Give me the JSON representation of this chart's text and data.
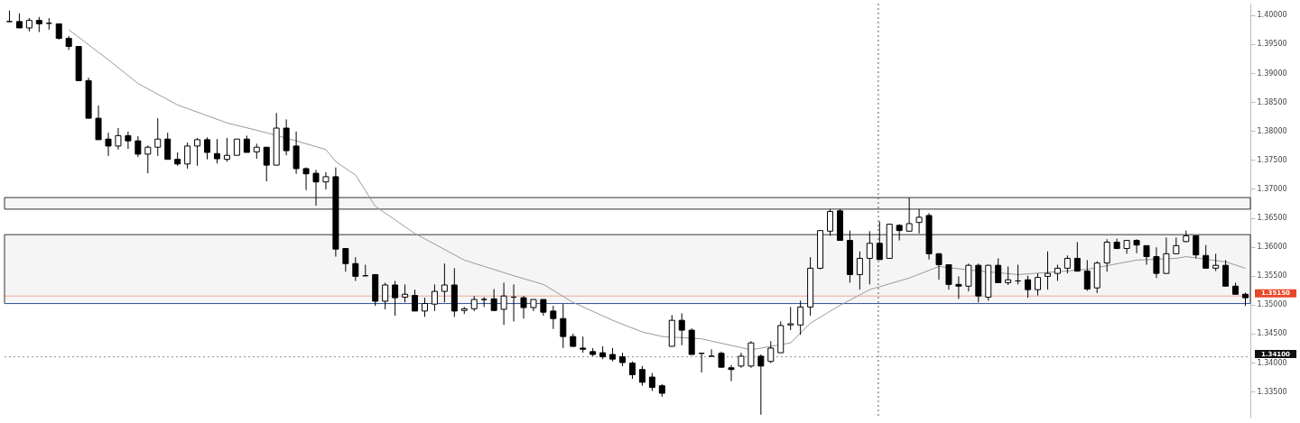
{
  "chart_data": {
    "type": "candlestick",
    "categories": [
      null,
      null,
      null,
      null,
      null,
      null,
      null,
      null,
      null,
      null,
      null,
      null,
      null,
      null,
      null,
      null,
      null,
      null,
      null,
      null,
      null,
      null,
      null,
      null,
      null,
      null,
      null,
      null,
      null,
      null,
      null,
      null,
      null,
      null,
      null,
      null,
      null,
      null,
      null,
      null,
      null,
      null,
      null,
      null,
      null,
      null,
      null,
      null,
      null,
      null,
      null,
      null,
      null,
      null,
      null,
      null,
      null,
      null,
      null,
      null,
      null,
      null,
      null,
      null,
      null,
      null,
      null,
      null,
      null,
      null,
      null,
      null,
      null,
      null,
      null,
      null,
      null,
      null,
      null,
      null,
      null,
      null,
      null,
      null,
      null,
      null,
      null,
      null,
      null,
      null,
      null,
      null,
      null,
      null,
      null,
      null,
      null,
      null,
      null,
      null,
      null,
      null,
      null,
      null,
      null,
      null,
      null,
      null,
      null,
      null,
      null,
      null,
      null,
      null,
      null,
      null,
      null,
      null,
      null,
      null,
      null,
      null,
      null,
      null,
      null,
      null
    ],
    "ohlc": [
      [
        1.3989,
        1.4008,
        1.3988,
        1.3989
      ],
      [
        1.3989,
        1.4003,
        1.3978,
        1.3978
      ],
      [
        1.3978,
        1.3995,
        1.3972,
        1.3991
      ],
      [
        1.3991,
        1.3997,
        1.3971,
        1.3985
      ],
      [
        1.3986,
        1.3995,
        1.3975,
        1.3986
      ],
      [
        1.3985,
        1.3985,
        1.3958,
        1.396
      ],
      [
        1.396,
        1.3964,
        1.394,
        1.3946
      ],
      [
        1.3946,
        1.3946,
        1.3887,
        1.3887
      ],
      [
        1.3887,
        1.3892,
        1.3822,
        1.3822
      ],
      [
        1.3822,
        1.3844,
        1.3785,
        1.3785
      ],
      [
        1.3786,
        1.3797,
        1.3757,
        1.3774
      ],
      [
        1.3774,
        1.3805,
        1.3768,
        1.3792
      ],
      [
        1.3792,
        1.3799,
        1.3769,
        1.3783
      ],
      [
        1.3783,
        1.3791,
        1.3755,
        1.376
      ],
      [
        1.376,
        1.3775,
        1.3727,
        1.3772
      ],
      [
        1.3772,
        1.3822,
        1.3757,
        1.3786
      ],
      [
        1.3786,
        1.3797,
        1.3751,
        1.3751
      ],
      [
        1.3751,
        1.3763,
        1.374,
        1.3743
      ],
      [
        1.3743,
        1.378,
        1.3735,
        1.3774
      ],
      [
        1.3774,
        1.3788,
        1.374,
        1.3785
      ],
      [
        1.3785,
        1.3789,
        1.3751,
        1.3763
      ],
      [
        1.3761,
        1.3786,
        1.3744,
        1.3752
      ],
      [
        1.3751,
        1.3788,
        1.3747,
        1.3758
      ],
      [
        1.3758,
        1.3786,
        1.3758,
        1.3786
      ],
      [
        1.3786,
        1.3792,
        1.3763,
        1.3763
      ],
      [
        1.3764,
        1.3778,
        1.3752,
        1.3772
      ],
      [
        1.3772,
        1.3772,
        1.3713,
        1.3741
      ],
      [
        1.3741,
        1.3831,
        1.3741,
        1.3805
      ],
      [
        1.3805,
        1.382,
        1.3758,
        1.3766
      ],
      [
        1.3774,
        1.3799,
        1.3726,
        1.3735
      ],
      [
        1.3735,
        1.3737,
        1.3698,
        1.3726
      ],
      [
        1.3727,
        1.3733,
        1.3671,
        1.3712
      ],
      [
        1.3712,
        1.3729,
        1.3699,
        1.3721
      ],
      [
        1.3721,
        1.3737,
        1.3583,
        1.3596
      ],
      [
        1.3597,
        1.3597,
        1.3557,
        1.3571
      ],
      [
        1.3571,
        1.3582,
        1.3541,
        1.3549
      ],
      [
        1.355,
        1.3569,
        1.3549,
        1.355
      ],
      [
        1.3552,
        1.3552,
        1.3498,
        1.3506
      ],
      [
        1.3506,
        1.3538,
        1.3492,
        1.3534
      ],
      [
        1.3534,
        1.3541,
        1.3481,
        1.3512
      ],
      [
        1.3513,
        1.3535,
        1.3504,
        1.3518
      ],
      [
        1.3516,
        1.3526,
        1.3489,
        1.3489
      ],
      [
        1.3489,
        1.3512,
        1.3479,
        1.3502
      ],
      [
        1.3501,
        1.3535,
        1.3489,
        1.3523
      ],
      [
        1.3523,
        1.3571,
        1.3504,
        1.3534
      ],
      [
        1.3534,
        1.3563,
        1.3479,
        1.3489
      ],
      [
        1.349,
        1.3496,
        1.3484,
        1.3493
      ],
      [
        1.3493,
        1.3515,
        1.3489,
        1.3509
      ],
      [
        1.3509,
        1.3513,
        1.3496,
        1.3509
      ],
      [
        1.351,
        1.3527,
        1.3489,
        1.349
      ],
      [
        1.3492,
        1.3538,
        1.3465,
        1.3515
      ],
      [
        1.3513,
        1.3535,
        1.3471,
        1.3513
      ],
      [
        1.3512,
        1.3515,
        1.3476,
        1.3495
      ],
      [
        1.3495,
        1.3509,
        1.3489,
        1.3509
      ],
      [
        1.3509,
        1.3509,
        1.3481,
        1.3487
      ],
      [
        1.3489,
        1.3498,
        1.3458,
        1.3476
      ],
      [
        1.3476,
        1.3501,
        1.3425,
        1.3445
      ],
      [
        1.3445,
        1.345,
        1.3427,
        1.3428
      ],
      [
        1.3425,
        1.3445,
        1.3417,
        1.3423
      ],
      [
        1.3419,
        1.3425,
        1.3411,
        1.3414
      ],
      [
        1.3417,
        1.3428,
        1.3406,
        1.341
      ],
      [
        1.3414,
        1.3425,
        1.3402,
        1.3406
      ],
      [
        1.341,
        1.3417,
        1.3394,
        1.34
      ],
      [
        1.3399,
        1.3402,
        1.3372,
        1.3379
      ],
      [
        1.3388,
        1.3394,
        1.336,
        1.3366
      ],
      [
        1.3375,
        1.3382,
        1.3351,
        1.3357
      ],
      [
        1.336,
        1.3363,
        1.3341,
        1.3347
      ],
      [
        1.3428,
        1.3482,
        1.3428,
        1.3473
      ],
      [
        1.3473,
        1.3485,
        1.343,
        1.3456
      ],
      [
        1.3456,
        1.3459,
        1.3414,
        1.3414
      ],
      [
        1.3416,
        1.3417,
        1.3383,
        1.3416
      ],
      [
        1.3411,
        1.3423,
        1.3411,
        1.3411
      ],
      [
        1.3416,
        1.3419,
        1.3391,
        1.3392
      ],
      [
        1.3391,
        1.3396,
        1.3368,
        1.3388
      ],
      [
        1.3394,
        1.3417,
        1.3391,
        1.3411
      ],
      [
        1.3394,
        1.3437,
        1.3391,
        1.3434
      ],
      [
        1.3411,
        1.3414,
        1.331,
        1.3394
      ],
      [
        1.3402,
        1.3437,
        1.3399,
        1.3425
      ],
      [
        1.3417,
        1.3471,
        1.3417,
        1.3464
      ],
      [
        1.3465,
        1.3496,
        1.3456,
        1.3467
      ],
      [
        1.3465,
        1.3507,
        1.3448,
        1.3496
      ],
      [
        1.3496,
        1.3582,
        1.3481,
        1.3563
      ],
      [
        1.3563,
        1.3628,
        1.3561,
        1.3628
      ],
      [
        1.3627,
        1.3665,
        1.3619,
        1.3661
      ],
      [
        1.3662,
        1.3665,
        1.3611,
        1.3611
      ],
      [
        1.3611,
        1.3628,
        1.3538,
        1.3552
      ],
      [
        1.3552,
        1.3592,
        1.3526,
        1.358
      ],
      [
        1.358,
        1.3627,
        1.3535,
        1.3606
      ],
      [
        1.3606,
        1.3644,
        1.3577,
        1.3578
      ],
      [
        1.358,
        1.3639,
        1.358,
        1.3639
      ],
      [
        1.3637,
        1.3639,
        1.3611,
        1.3628
      ],
      [
        1.3627,
        1.3685,
        1.3627,
        1.364
      ],
      [
        1.3642,
        1.3665,
        1.3623,
        1.3651
      ],
      [
        1.3654,
        1.3658,
        1.3578,
        1.3588
      ],
      [
        1.3588,
        1.3589,
        1.3543,
        1.3569
      ],
      [
        1.3569,
        1.3569,
        1.3526,
        1.3535
      ],
      [
        1.3535,
        1.3549,
        1.351,
        1.3532
      ],
      [
        1.3532,
        1.3571,
        1.3523,
        1.3568
      ],
      [
        1.3568,
        1.3571,
        1.3504,
        1.3515
      ],
      [
        1.3513,
        1.3569,
        1.3507,
        1.3568
      ],
      [
        1.3568,
        1.358,
        1.3538,
        1.3538
      ],
      [
        1.3538,
        1.3566,
        1.3534,
        1.3543
      ],
      [
        1.3541,
        1.3569,
        1.3535,
        1.3541
      ],
      [
        1.3543,
        1.355,
        1.3512,
        1.3526
      ],
      [
        1.3526,
        1.3554,
        1.3516,
        1.3547
      ],
      [
        1.3549,
        1.3592,
        1.3526,
        1.3554
      ],
      [
        1.3554,
        1.3569,
        1.3541,
        1.3563
      ],
      [
        1.3563,
        1.3585,
        1.3554,
        1.358
      ],
      [
        1.358,
        1.3608,
        1.3557,
        1.3558
      ],
      [
        1.3558,
        1.3577,
        1.3524,
        1.3527
      ],
      [
        1.3529,
        1.3575,
        1.352,
        1.3572
      ],
      [
        1.3572,
        1.3613,
        1.3557,
        1.3608
      ],
      [
        1.3608,
        1.3614,
        1.3596,
        1.3597
      ],
      [
        1.3597,
        1.3611,
        1.3588,
        1.3611
      ],
      [
        1.3611,
        1.3613,
        1.3589,
        1.3603
      ],
      [
        1.3602,
        1.3602,
        1.3569,
        1.3583
      ],
      [
        1.3583,
        1.3599,
        1.3546,
        1.3554
      ],
      [
        1.3554,
        1.3616,
        1.3554,
        1.3588
      ],
      [
        1.3588,
        1.3616,
        1.3588,
        1.3602
      ],
      [
        1.3609,
        1.3628,
        1.3608,
        1.3619
      ],
      [
        1.3619,
        1.3619,
        1.358,
        1.3586
      ],
      [
        1.3585,
        1.3603,
        1.3563,
        1.3563
      ],
      [
        1.3563,
        1.3588,
        1.3558,
        1.3568
      ],
      [
        1.3568,
        1.3577,
        1.3532,
        1.3532
      ],
      [
        1.3532,
        1.3538,
        1.3518,
        1.3518
      ],
      [
        1.3518,
        1.3521,
        1.3498,
        1.3512
      ]
    ],
    "series": [
      {
        "type": "line",
        "color": "#9a9a9a",
        "values": [
          null,
          null,
          null,
          null,
          null,
          null,
          1.3975,
          null,
          1.3949,
          null,
          1.3923,
          null,
          null,
          1.3882,
          null,
          null,
          null,
          1.3845,
          null,
          null,
          null,
          null,
          1.3814,
          null,
          null,
          null,
          1.3797,
          null,
          null,
          1.3783,
          null,
          null,
          1.3768,
          1.3747,
          null,
          1.3724,
          null,
          1.367,
          null,
          null,
          null,
          1.3623,
          null,
          null,
          null,
          null,
          1.3577,
          null,
          null,
          null,
          null,
          1.355,
          null,
          null,
          1.3535,
          null,
          null,
          1.3504,
          null,
          null,
          null,
          1.3473,
          null,
          null,
          1.3453,
          null,
          1.3445,
          null,
          null,
          null,
          1.3441,
          null,
          null,
          null,
          null,
          1.3422,
          null,
          null,
          null,
          1.3434,
          null,
          1.3468,
          null,
          null,
          1.3499,
          null,
          null,
          1.3526,
          null,
          null,
          null,
          1.3546,
          null,
          null,
          1.3566,
          null,
          null,
          1.356,
          null,
          null,
          null,
          null,
          1.3552,
          null,
          null,
          null,
          1.3557,
          null,
          null,
          1.3561,
          null,
          null,
          null,
          null,
          1.3577,
          null,
          null,
          null,
          1.358,
          1.3583,
          null,
          null,
          null,
          1.3574,
          null,
          1.3563
        ]
      }
    ],
    "ylim": [
      1.3305,
      1.402
    ],
    "yticks": [
      {
        "value": 1.4,
        "label": "1.40000"
      },
      {
        "value": 1.395,
        "label": "1.39500"
      },
      {
        "value": 1.39,
        "label": "1.39000"
      },
      {
        "value": 1.385,
        "label": "1.38500"
      },
      {
        "value": 1.38,
        "label": "1.38000"
      },
      {
        "value": 1.375,
        "label": "1.37500"
      },
      {
        "value": 1.37,
        "label": "1.37000"
      },
      {
        "value": 1.365,
        "label": "1.36500"
      },
      {
        "value": 1.36,
        "label": "1.36000"
      },
      {
        "value": 1.355,
        "label": "1.35500"
      },
      {
        "value": 1.35,
        "label": "1.35000"
      },
      {
        "value": 1.345,
        "label": "1.34500"
      },
      {
        "value": 1.34,
        "label": "1.34000"
      },
      {
        "value": 1.335,
        "label": "1.33500"
      }
    ],
    "tick_labels": "y",
    "ref_lines": [
      {
        "axis": "y",
        "value": 1.3515,
        "label": "1.35150",
        "color": "#e8472a"
      },
      {
        "axis": "y",
        "value": 1.341,
        "label": "1.34100",
        "color": "#111111",
        "line_style": "dotted"
      },
      {
        "axis": "y",
        "value": 1.3502,
        "color": "#3b5ba5"
      }
    ],
    "bands": [
      {
        "axis": "y",
        "from": 1.3665,
        "to": 1.3685,
        "color": "#333333"
      },
      {
        "axis": "y",
        "from": 1.3502,
        "to": 1.3621,
        "color": "#333333"
      }
    ]
  }
}
